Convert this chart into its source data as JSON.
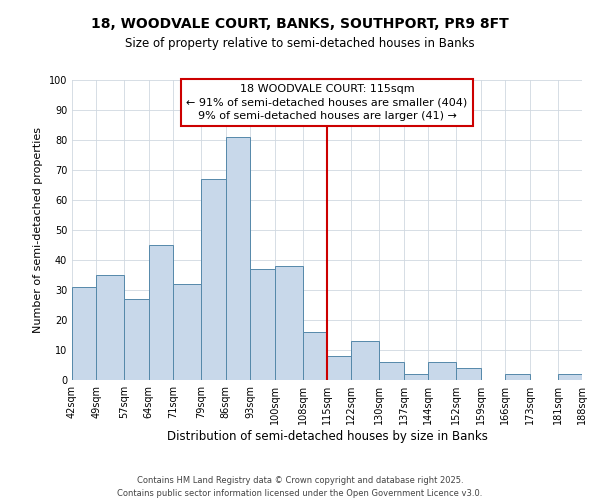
{
  "title": "18, WOODVALE COURT, BANKS, SOUTHPORT, PR9 8FT",
  "subtitle": "Size of property relative to semi-detached houses in Banks",
  "xlabel": "Distribution of semi-detached houses by size in Banks",
  "ylabel": "Number of semi-detached properties",
  "bar_edges": [
    42,
    49,
    57,
    64,
    71,
    79,
    86,
    93,
    100,
    108,
    115,
    122,
    130,
    137,
    144,
    152,
    159,
    166,
    173,
    181,
    188
  ],
  "bar_heights": [
    31,
    35,
    27,
    45,
    32,
    67,
    81,
    37,
    38,
    16,
    8,
    13,
    6,
    2,
    6,
    4,
    0,
    2,
    0,
    2
  ],
  "tick_labels": [
    "42sqm",
    "49sqm",
    "57sqm",
    "64sqm",
    "71sqm",
    "79sqm",
    "86sqm",
    "93sqm",
    "100sqm",
    "108sqm",
    "115sqm",
    "122sqm",
    "130sqm",
    "137sqm",
    "144sqm",
    "152sqm",
    "159sqm",
    "166sqm",
    "173sqm",
    "181sqm",
    "188sqm"
  ],
  "bar_color": "#c8d8ea",
  "bar_edge_color": "#5588aa",
  "vline_x": 115,
  "vline_color": "#cc0000",
  "annotation_line1": "18 WOODVALE COURT: 115sqm",
  "annotation_line2": "← 91% of semi-detached houses are smaller (404)",
  "annotation_line3": "9% of semi-detached houses are larger (41) →",
  "annotation_box_facecolor": "#ffffff",
  "annotation_box_edgecolor": "#cc0000",
  "ylim": [
    0,
    100
  ],
  "yticks": [
    0,
    10,
    20,
    30,
    40,
    50,
    60,
    70,
    80,
    90,
    100
  ],
  "background_color": "#ffffff",
  "grid_color": "#d0d8e0",
  "footer1": "Contains HM Land Registry data © Crown copyright and database right 2025.",
  "footer2": "Contains public sector information licensed under the Open Government Licence v3.0.",
  "title_fontsize": 10,
  "subtitle_fontsize": 8.5,
  "xlabel_fontsize": 8.5,
  "ylabel_fontsize": 8,
  "tick_fontsize": 7,
  "annotation_fontsize": 8,
  "footer_fontsize": 6
}
